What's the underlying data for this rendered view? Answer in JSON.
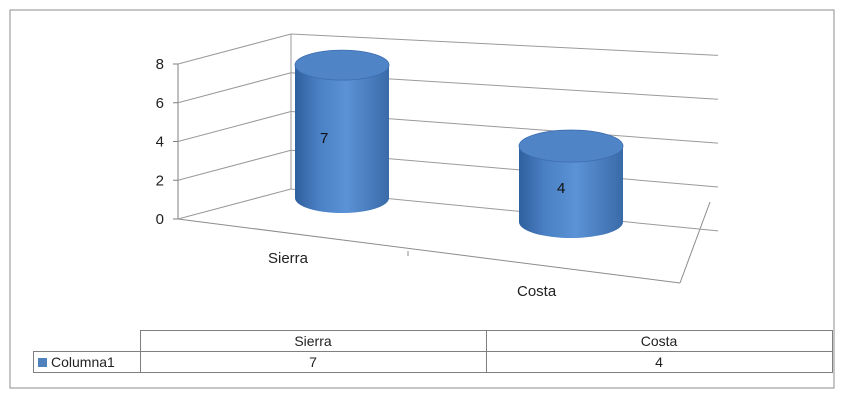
{
  "chart_data": {
    "type": "bar",
    "shape": "3d-cylinder",
    "categories": [
      "Sierra",
      "Costa"
    ],
    "series": [
      {
        "name": "Columna1",
        "values": [
          7,
          4
        ],
        "color": "#4f81bd"
      }
    ],
    "data_labels": [
      "7",
      "4"
    ],
    "yticks": [
      "0",
      "2",
      "4",
      "6",
      "8"
    ],
    "ylim": [
      0,
      8
    ],
    "grid": true,
    "legend": "data-table",
    "title": "",
    "xlabel": "",
    "ylabel": ""
  },
  "table": {
    "headers": [
      "Sierra",
      "Costa"
    ],
    "series_name": "Columna1",
    "values": [
      "7",
      "4"
    ]
  }
}
